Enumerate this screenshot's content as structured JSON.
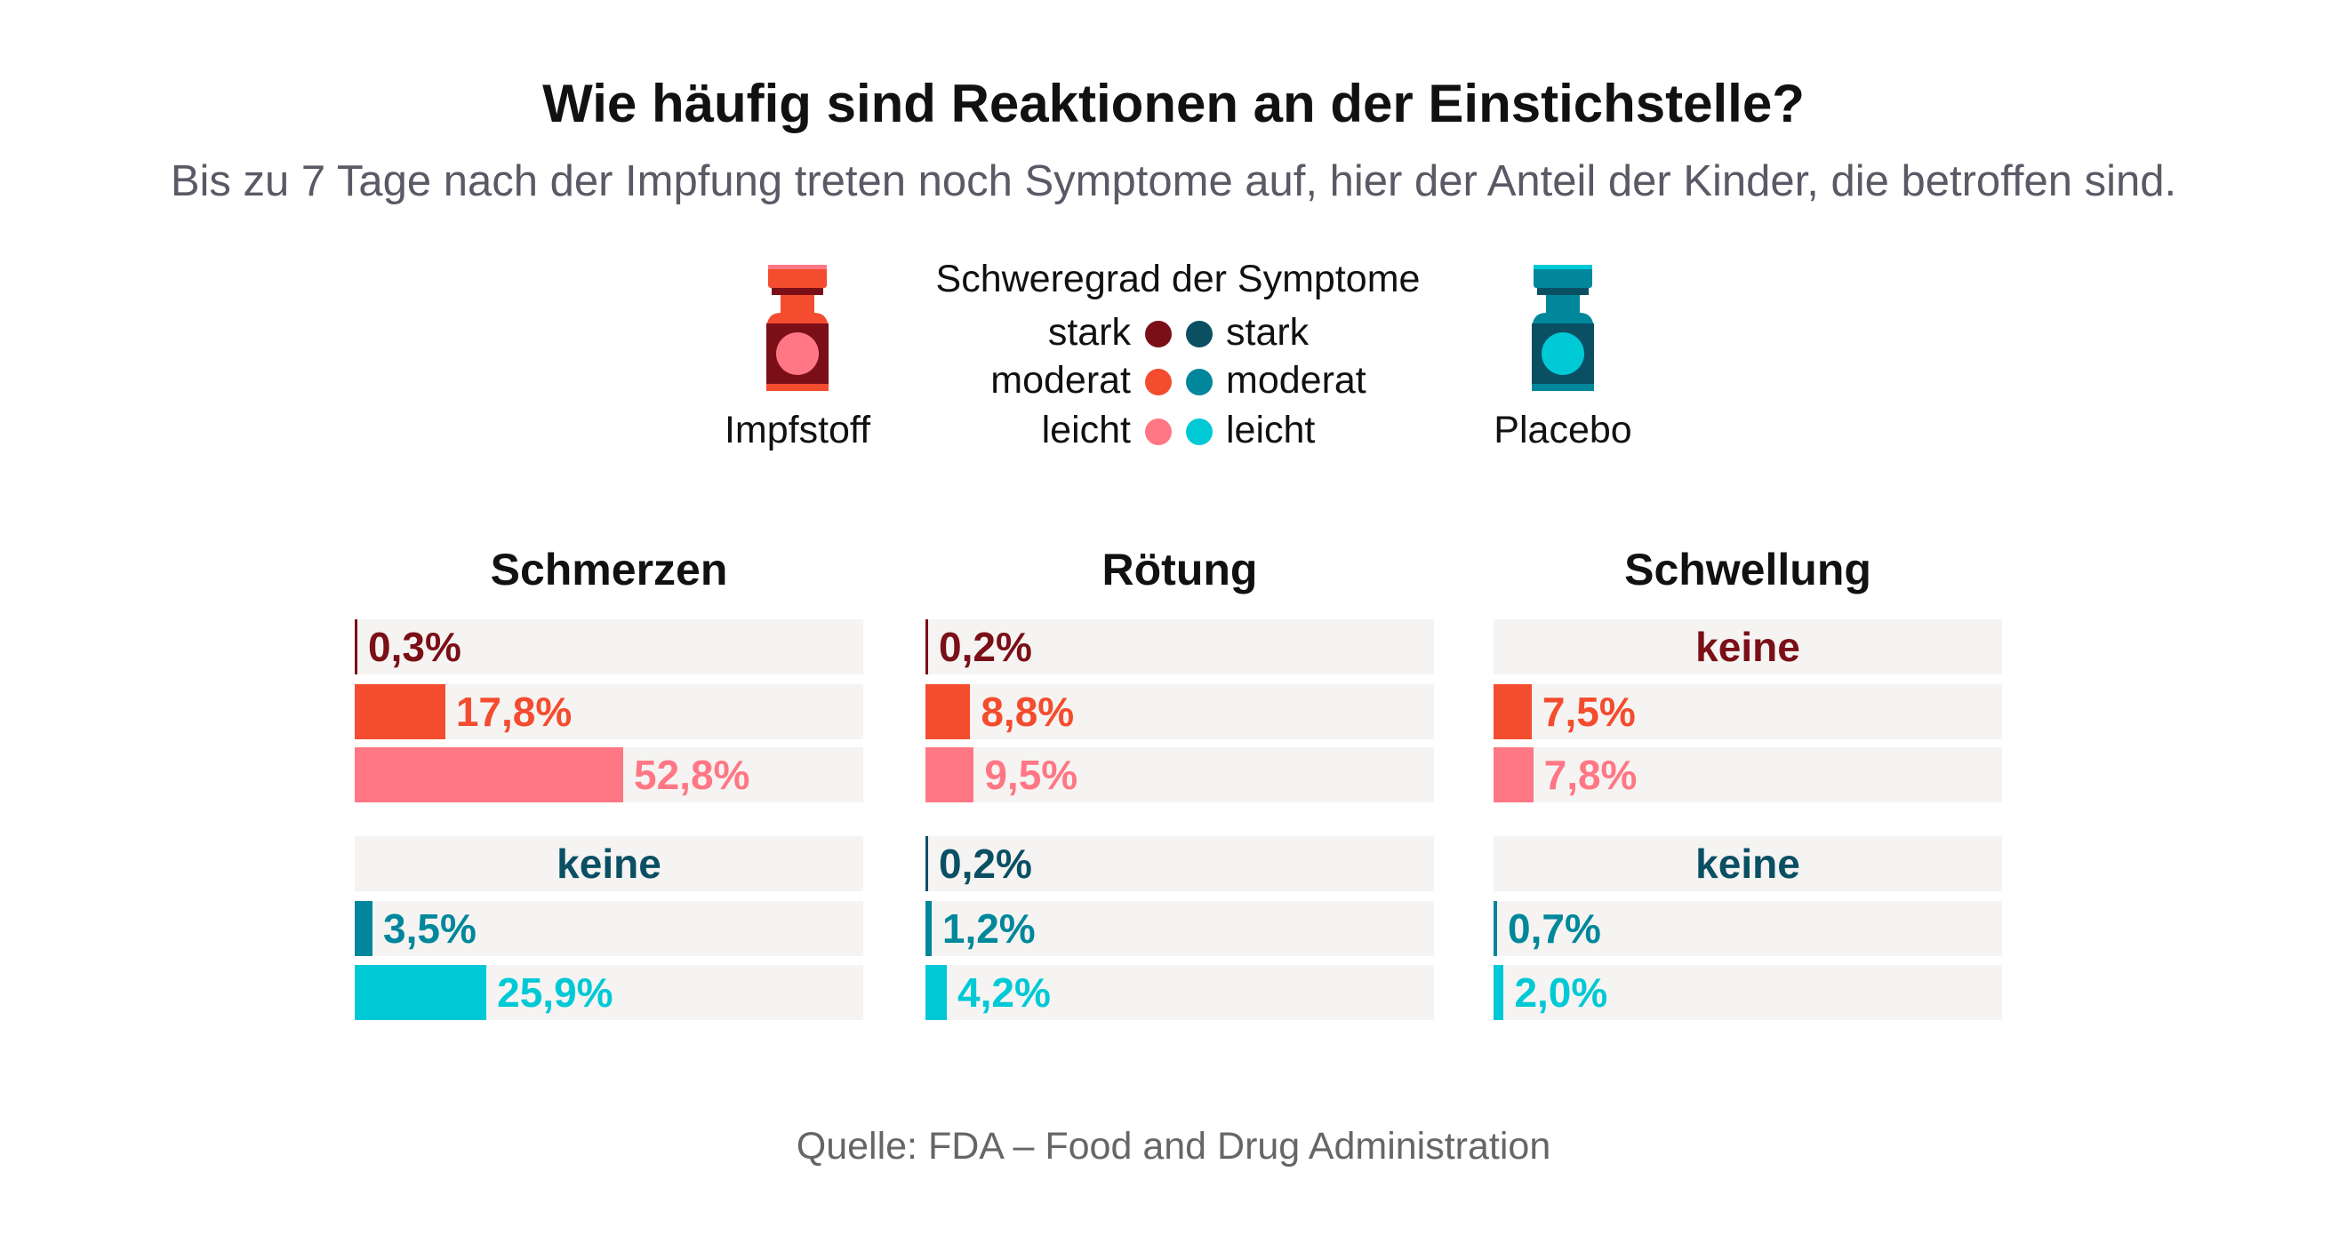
{
  "title": "Wie häufig sind Reaktionen an der Einstichstelle?",
  "subtitle": "Bis zu 7 Tage nach der Impfung treten noch Symptome auf, hier der Anteil der Kinder, die betroffen sind.",
  "legend": {
    "title": "Schweregrad der Symptome",
    "levels": [
      "stark",
      "moderat",
      "leicht"
    ],
    "vaccine_label": "Impfstoff",
    "placebo_label": "Placebo",
    "vaccine_colors": [
      "#7b0f17",
      "#f44c2e",
      "#ff7785"
    ],
    "placebo_colors": [
      "#0b4f63",
      "#00879c",
      "#00c9d6"
    ]
  },
  "source": "Quelle: FDA – Food and Drug Administration",
  "chart_data": {
    "type": "bar",
    "orientation": "horizontal",
    "xlim": [
      0,
      100
    ],
    "unit": "%",
    "none_label": "keine",
    "panels": [
      {
        "title": "Schmerzen",
        "vaccine": {
          "values": [
            0.3,
            17.8,
            52.8
          ],
          "labels": [
            "0,3%",
            "17,8%",
            "52,8%"
          ]
        },
        "placebo": {
          "values": [
            null,
            3.5,
            25.9
          ],
          "labels": [
            "keine",
            "3,5%",
            "25,9%"
          ]
        }
      },
      {
        "title": "Rötung",
        "vaccine": {
          "values": [
            0.2,
            8.8,
            9.5
          ],
          "labels": [
            "0,2%",
            "8,8%",
            "9,5%"
          ]
        },
        "placebo": {
          "values": [
            0.2,
            1.2,
            4.2
          ],
          "labels": [
            "0,2%",
            "1,2%",
            "4,2%"
          ]
        }
      },
      {
        "title": "Schwellung",
        "vaccine": {
          "values": [
            null,
            7.5,
            7.8
          ],
          "labels": [
            "keine",
            "7,5%",
            "7,8%"
          ]
        },
        "placebo": {
          "values": [
            null,
            0.7,
            2.0
          ],
          "labels": [
            "keine",
            "0,7%",
            "2,0%"
          ]
        }
      }
    ]
  }
}
